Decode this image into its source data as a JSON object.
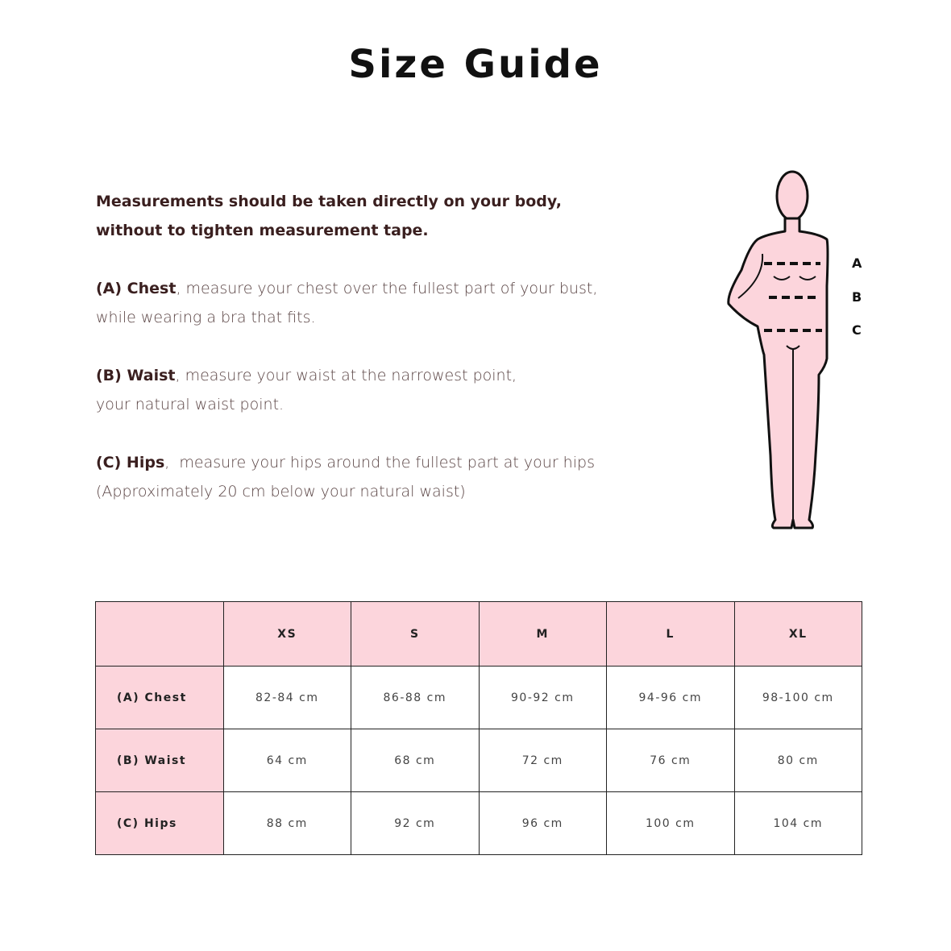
{
  "title": "Size Guide",
  "intro": {
    "lead_line1": "Measurements should be taken directly on your body,",
    "lead_line2": "without to tighten measurement tape.",
    "items": [
      {
        "label": "(A) Chest",
        "text1": ", measure your chest over the fullest part of your bust,",
        "text2": "while wearing a bra that fits."
      },
      {
        "label": "(B) Waist",
        "text1": ", measure your waist at the narrowest point,",
        "text2": "your natural waist point."
      },
      {
        "label": "(C) Hips",
        "text1": ",  measure your hips around the fullest part at your hips",
        "text2": "(Approximately 20 cm below your natural waist)"
      }
    ]
  },
  "figure": {
    "letters": [
      "A",
      "B",
      "C"
    ],
    "fill": "#fcd5dc"
  },
  "colors": {
    "accent": "#fcd5dc",
    "text": "#3a1f1f"
  },
  "table": {
    "headers": [
      "",
      "XS",
      "S",
      "M",
      "L",
      "XL"
    ],
    "rows": [
      {
        "label": "(A) Chest",
        "cells": [
          "82-84 cm",
          "86-88 cm",
          "90-92 cm",
          "94-96 cm",
          "98-100 cm"
        ]
      },
      {
        "label": "(B) Waist",
        "cells": [
          "64 cm",
          "68 cm",
          "72 cm",
          "76 cm",
          "80 cm"
        ]
      },
      {
        "label": "(C) Hips",
        "cells": [
          "88 cm",
          "92 cm",
          "96 cm",
          "100 cm",
          "104 cm"
        ]
      }
    ]
  }
}
